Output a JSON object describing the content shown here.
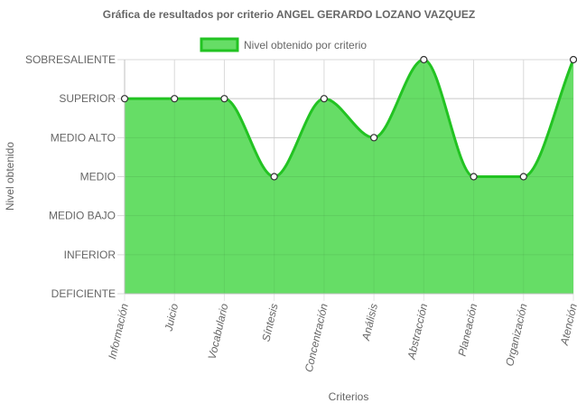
{
  "chart_data": {
    "type": "area",
    "title": "Gráfica de resultados por criterio ANGEL GERARDO LOZANO VAZQUEZ",
    "xlabel": "Criterios",
    "ylabel": "Nivel obtenido",
    "y_levels": [
      "DEFICIENTE",
      "INFERIOR",
      "MEDIO BAJO",
      "MEDIO",
      "MEDIO ALTO",
      "SUPERIOR",
      "SOBRESALIENTE"
    ],
    "ylim": [
      0,
      6
    ],
    "categories": [
      "Información",
      "Juicio",
      "Vocabulario",
      "Síntesis",
      "Concentración",
      "Análisis",
      "Abstracción",
      "Planeación",
      "Organización",
      "Atención"
    ],
    "series": [
      {
        "name": "Nivel obtenido por criterio",
        "values": [
          5,
          5,
          5,
          3,
          5,
          4,
          6,
          3,
          3,
          6
        ],
        "fill_color": "#66dd66",
        "line_color": "#22c322"
      }
    ],
    "grid": true,
    "legend_position": "top"
  }
}
